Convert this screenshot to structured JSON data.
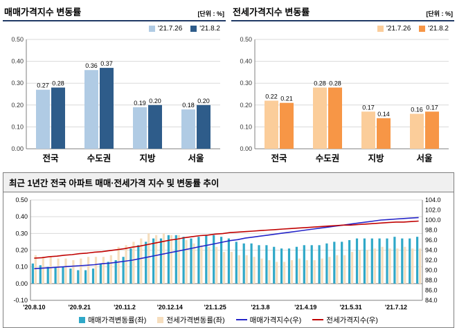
{
  "colors": {
    "title_underline": "#1f3864",
    "grid": "#d9d9d9",
    "axis": "#7f7f7f"
  },
  "chart_data": [
    {
      "type": "bar",
      "title": "매매가격지수 변동률",
      "unit_label": "[단위 : %]",
      "categories": [
        "전국",
        "수도권",
        "지방",
        "서울"
      ],
      "series": [
        {
          "name": "'21.7.26",
          "color": "#b0cbe4",
          "values": [
            0.27,
            0.36,
            0.19,
            0.18
          ]
        },
        {
          "name": "'21.8.2",
          "color": "#2e5c8a",
          "values": [
            0.28,
            0.37,
            0.2,
            0.2
          ]
        }
      ],
      "ylim": [
        0,
        0.5
      ],
      "yticks": [
        "0.50",
        "0.40",
        "0.30",
        "0.20",
        "0.10",
        "0.00"
      ],
      "legend_position": "top-right",
      "grid": true
    },
    {
      "type": "bar",
      "title": "전세가격지수 변동률",
      "unit_label": "[단위 : %]",
      "categories": [
        "전국",
        "수도권",
        "지방",
        "서울"
      ],
      "series": [
        {
          "name": "'21.7.26",
          "color": "#fbcd9a",
          "values": [
            0.22,
            0.28,
            0.17,
            0.16
          ]
        },
        {
          "name": "'21.8.2",
          "color": "#f79646",
          "values": [
            0.21,
            0.28,
            0.14,
            0.17
          ]
        }
      ],
      "ylim": [
        0,
        0.5
      ],
      "yticks": [
        "0.50",
        "0.40",
        "0.30",
        "0.20",
        "0.10",
        "0.00"
      ],
      "legend_position": "top-right",
      "grid": true
    },
    {
      "type": "combo",
      "title": "최근 1년간 전국 아파트 매매·전세가격 지수 및 변동률 추이",
      "x_tick_labels": [
        "'20.8.10",
        "'20.9.21",
        "'20.11.2",
        "'20.12.14",
        "'21.1.25",
        "'21.3.8",
        "'21.4.19",
        "'21.5.31",
        "'21.7.12"
      ],
      "x_tick_indices": [
        0,
        6,
        12,
        18,
        24,
        30,
        36,
        42,
        48
      ],
      "left_axis": {
        "min": -0.1,
        "max": 0.5,
        "ticks": [
          "0.50",
          "0.40",
          "0.30",
          "0.20",
          "0.10",
          "0.00",
          "-0.10"
        ]
      },
      "right_axis": {
        "min": 84,
        "max": 104,
        "ticks": [
          "104.0",
          "102.0",
          "100.0",
          "98.0",
          "96.0",
          "94.0",
          "92.0",
          "90.0",
          "88.0",
          "86.0",
          "84.0"
        ]
      },
      "bar_series": [
        {
          "name": "매매가격변동률(좌)",
          "color": "#2fa8c8",
          "axis": "left",
          "values": [
            0.12,
            0.11,
            0.1,
            0.1,
            0.1,
            0.09,
            0.08,
            0.08,
            0.09,
            0.12,
            0.13,
            0.14,
            0.16,
            0.21,
            0.23,
            0.25,
            0.27,
            0.27,
            0.29,
            0.29,
            0.28,
            0.27,
            0.28,
            0.29,
            0.29,
            0.28,
            0.27,
            0.25,
            0.24,
            0.24,
            0.23,
            0.23,
            0.22,
            0.21,
            0.21,
            0.22,
            0.23,
            0.23,
            0.23,
            0.24,
            0.25,
            0.25,
            0.26,
            0.27,
            0.27,
            0.27,
            0.27,
            0.27,
            0.28,
            0.27,
            0.27,
            0.28
          ]
        },
        {
          "name": "전세가격변동률(좌)",
          "color": "#f6debe",
          "axis": "left",
          "values": [
            0.17,
            0.16,
            0.16,
            0.15,
            0.15,
            0.14,
            0.15,
            0.16,
            0.16,
            0.16,
            0.17,
            0.22,
            0.23,
            0.25,
            0.27,
            0.3,
            0.29,
            0.3,
            0.29,
            0.29,
            0.26,
            0.24,
            0.23,
            0.22,
            0.22,
            0.19,
            0.19,
            0.17,
            0.17,
            0.16,
            0.15,
            0.14,
            0.13,
            0.13,
            0.14,
            0.15,
            0.14,
            0.14,
            0.15,
            0.16,
            0.17,
            0.17,
            0.19,
            0.2,
            0.2,
            0.21,
            0.22,
            0.21,
            0.21,
            0.22,
            0.21,
            0.21
          ]
        }
      ],
      "line_series": [
        {
          "name": "매매가격지수(우)",
          "color": "#2323c8",
          "axis": "right",
          "values": [
            90.3,
            90.4,
            90.5,
            90.6,
            90.7,
            90.8,
            90.9,
            91.0,
            91.1,
            91.3,
            91.4,
            91.6,
            91.8,
            92.0,
            92.3,
            92.6,
            92.9,
            93.2,
            93.5,
            93.8,
            94.1,
            94.4,
            94.7,
            95.0,
            95.3,
            95.6,
            95.9,
            96.1,
            96.4,
            96.6,
            96.8,
            97.0,
            97.2,
            97.4,
            97.6,
            97.8,
            98.0,
            98.2,
            98.4,
            98.6,
            98.8,
            99.0,
            99.2,
            99.4,
            99.6,
            99.8,
            100.0,
            100.1,
            100.2,
            100.3,
            100.4,
            100.5
          ]
        },
        {
          "name": "전세가격지수(우)",
          "color": "#c00000",
          "axis": "right",
          "values": [
            92.4,
            92.5,
            92.7,
            92.8,
            93.0,
            93.1,
            93.3,
            93.4,
            93.6,
            93.7,
            93.9,
            94.1,
            94.3,
            94.6,
            94.8,
            95.1,
            95.4,
            95.7,
            96.0,
            96.2,
            96.5,
            96.7,
            96.9,
            97.0,
            97.2,
            97.3,
            97.5,
            97.6,
            97.7,
            97.8,
            97.9,
            98.0,
            98.1,
            98.2,
            98.3,
            98.4,
            98.5,
            98.6,
            98.7,
            98.8,
            98.9,
            99.0,
            99.0,
            99.1,
            99.2,
            99.3,
            99.4,
            99.5,
            99.6,
            99.6,
            99.7,
            99.8
          ]
        }
      ],
      "grid": true,
      "legend_position": "bottom-center"
    }
  ]
}
